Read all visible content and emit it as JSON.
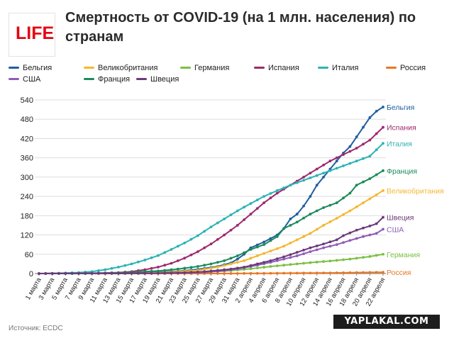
{
  "header": {
    "logo_text": "LIFE",
    "title_line1": "Смертность от COVID-19 (на 1 млн. населения) по",
    "title_line2": "странам"
  },
  "footer": {
    "source": "Источник: ECDC",
    "watermark": "YAPLAKAL.COM"
  },
  "chart_data": {
    "type": "line",
    "xlabel": "",
    "ylabel": "",
    "ylim": [
      0,
      540
    ],
    "yticks": [
      0,
      60,
      120,
      180,
      240,
      300,
      360,
      420,
      480,
      540
    ],
    "grid": "horizontal",
    "legend_position": "top",
    "end_labels": true,
    "x": [
      "1 марта",
      "2 марта",
      "3 марта",
      "4 марта",
      "5 марта",
      "6 марта",
      "7 марта",
      "8 марта",
      "9 марта",
      "10 марта",
      "11 марта",
      "12 марта",
      "13 марта",
      "14 марта",
      "15 марта",
      "16 марта",
      "17 марта",
      "18 марта",
      "19 марта",
      "20 марта",
      "21 марта",
      "22 марта",
      "23 марта",
      "24 марта",
      "25 марта",
      "26 марта",
      "27 марта",
      "28 марта",
      "29 марта",
      "30 марта",
      "31 марта",
      "1 апреля",
      "2 апреля",
      "3 апреля",
      "4 апреля",
      "5 апреля",
      "6 апреля",
      "7 апреля",
      "8 апреля",
      "9 апреля",
      "10 апреля",
      "11 апреля",
      "12 апреля",
      "13 апреля",
      "14 апреля",
      "15 апреля",
      "16 апреля",
      "17 апреля",
      "18 апреля",
      "19 апреля",
      "20 апреля",
      "21 апреля",
      "22 апреля"
    ],
    "x_tick_labels": [
      "1 марта",
      "3 марта",
      "5 марта",
      "7 марта",
      "9 марта",
      "11 марта",
      "13 марта",
      "15 марта",
      "17 марта",
      "19 марта",
      "21 марта",
      "23 марта",
      "25 марта",
      "27 марта",
      "29 марта",
      "31 марта",
      "2 апреля",
      "4 апреля",
      "6 апреля",
      "8 апреля",
      "10 апреля",
      "12 апреля",
      "14 апреля",
      "16 апреля",
      "18 апреля",
      "20 апреля",
      "22 апреля"
    ],
    "series": [
      {
        "name": "Бельгия",
        "color": "#1f5f9e",
        "keys": [
          [
            0,
            0
          ],
          [
            14,
            1
          ],
          [
            18,
            4
          ],
          [
            21,
            7
          ],
          [
            24,
            13
          ],
          [
            27,
            22
          ],
          [
            29,
            33
          ],
          [
            30,
            45
          ],
          [
            31,
            60
          ],
          [
            32,
            80
          ],
          [
            34,
            98
          ],
          [
            36,
            120
          ],
          [
            37,
            140
          ],
          [
            38,
            170
          ],
          [
            39,
            185
          ],
          [
            40,
            210
          ],
          [
            41,
            240
          ],
          [
            42,
            275
          ],
          [
            43,
            300
          ],
          [
            44,
            325
          ],
          [
            45,
            350
          ],
          [
            46,
            375
          ],
          [
            47,
            395
          ],
          [
            48,
            425
          ],
          [
            49,
            455
          ],
          [
            50,
            485
          ],
          [
            51,
            505
          ],
          [
            52,
            518
          ]
        ]
      },
      {
        "name": "Великобритания",
        "color": "#f5b731",
        "keys": [
          [
            0,
            0
          ],
          [
            15,
            1
          ],
          [
            20,
            4
          ],
          [
            24,
            10
          ],
          [
            27,
            20
          ],
          [
            29,
            30
          ],
          [
            31,
            40
          ],
          [
            33,
            55
          ],
          [
            35,
            70
          ],
          [
            37,
            85
          ],
          [
            39,
            105
          ],
          [
            41,
            125
          ],
          [
            43,
            150
          ],
          [
            45,
            172
          ],
          [
            47,
            195
          ],
          [
            49,
            220
          ],
          [
            51,
            245
          ],
          [
            52,
            258
          ]
        ]
      },
      {
        "name": "Германия",
        "color": "#7bc043",
        "keys": [
          [
            0,
            0
          ],
          [
            17,
            1
          ],
          [
            21,
            2
          ],
          [
            25,
            4
          ],
          [
            29,
            9
          ],
          [
            32,
            15
          ],
          [
            35,
            22
          ],
          [
            38,
            28
          ],
          [
            41,
            34
          ],
          [
            44,
            39
          ],
          [
            47,
            45
          ],
          [
            50,
            53
          ],
          [
            52,
            60
          ]
        ]
      },
      {
        "name": "Испания",
        "color": "#9c2a6e",
        "keys": [
          [
            0,
            0
          ],
          [
            8,
            1
          ],
          [
            12,
            3
          ],
          [
            14,
            6
          ],
          [
            16,
            12
          ],
          [
            18,
            20
          ],
          [
            20,
            32
          ],
          [
            22,
            48
          ],
          [
            24,
            68
          ],
          [
            26,
            92
          ],
          [
            28,
            120
          ],
          [
            30,
            150
          ],
          [
            32,
            185
          ],
          [
            34,
            220
          ],
          [
            36,
            250
          ],
          [
            38,
            275
          ],
          [
            40,
            300
          ],
          [
            42,
            325
          ],
          [
            44,
            350
          ],
          [
            46,
            370
          ],
          [
            48,
            390
          ],
          [
            50,
            415
          ],
          [
            52,
            455
          ]
        ]
      },
      {
        "name": "Италия",
        "color": "#2ab3b5",
        "keys": [
          [
            0,
            0
          ],
          [
            3,
            1
          ],
          [
            6,
            3
          ],
          [
            8,
            6
          ],
          [
            10,
            12
          ],
          [
            12,
            20
          ],
          [
            14,
            30
          ],
          [
            16,
            42
          ],
          [
            18,
            56
          ],
          [
            20,
            75
          ],
          [
            22,
            95
          ],
          [
            24,
            118
          ],
          [
            26,
            145
          ],
          [
            28,
            170
          ],
          [
            30,
            195
          ],
          [
            32,
            218
          ],
          [
            34,
            240
          ],
          [
            36,
            258
          ],
          [
            38,
            275
          ],
          [
            40,
            290
          ],
          [
            42,
            305
          ],
          [
            44,
            320
          ],
          [
            46,
            335
          ],
          [
            48,
            350
          ],
          [
            50,
            365
          ],
          [
            52,
            405
          ]
        ]
      },
      {
        "name": "Россия",
        "color": "#e87722",
        "keys": [
          [
            0,
            0
          ],
          [
            28,
            0
          ],
          [
            36,
            1
          ],
          [
            44,
            2
          ],
          [
            52,
            4
          ]
        ]
      },
      {
        "name": "США",
        "color": "#8e5cb8",
        "keys": [
          [
            0,
            0
          ],
          [
            18,
            1
          ],
          [
            22,
            2
          ],
          [
            25,
            4
          ],
          [
            27,
            7
          ],
          [
            29,
            12
          ],
          [
            31,
            18
          ],
          [
            33,
            26
          ],
          [
            35,
            35
          ],
          [
            37,
            45
          ],
          [
            39,
            55
          ],
          [
            41,
            68
          ],
          [
            43,
            80
          ],
          [
            45,
            90
          ],
          [
            47,
            103
          ],
          [
            49,
            115
          ],
          [
            51,
            125
          ],
          [
            52,
            138
          ]
        ]
      },
      {
        "name": "Франция",
        "color": "#1b8a5a",
        "keys": [
          [
            0,
            0
          ],
          [
            10,
            1
          ],
          [
            14,
            4
          ],
          [
            18,
            8
          ],
          [
            21,
            14
          ],
          [
            24,
            22
          ],
          [
            26,
            30
          ],
          [
            28,
            40
          ],
          [
            30,
            55
          ],
          [
            32,
            75
          ],
          [
            34,
            90
          ],
          [
            36,
            115
          ],
          [
            37,
            140
          ],
          [
            39,
            160
          ],
          [
            41,
            185
          ],
          [
            43,
            205
          ],
          [
            45,
            220
          ],
          [
            47,
            250
          ],
          [
            48,
            275
          ],
          [
            50,
            295
          ],
          [
            52,
            320
          ]
        ]
      },
      {
        "name": "Швеция",
        "color": "#6b3a7a",
        "keys": [
          [
            0,
            0
          ],
          [
            18,
            1
          ],
          [
            22,
            3
          ],
          [
            25,
            6
          ],
          [
            27,
            10
          ],
          [
            29,
            14
          ],
          [
            31,
            20
          ],
          [
            33,
            30
          ],
          [
            35,
            40
          ],
          [
            37,
            52
          ],
          [
            39,
            66
          ],
          [
            41,
            80
          ],
          [
            43,
            92
          ],
          [
            45,
            105
          ],
          [
            46,
            118
          ],
          [
            48,
            135
          ],
          [
            50,
            148
          ],
          [
            51,
            155
          ],
          [
            52,
            175
          ]
        ]
      }
    ]
  }
}
